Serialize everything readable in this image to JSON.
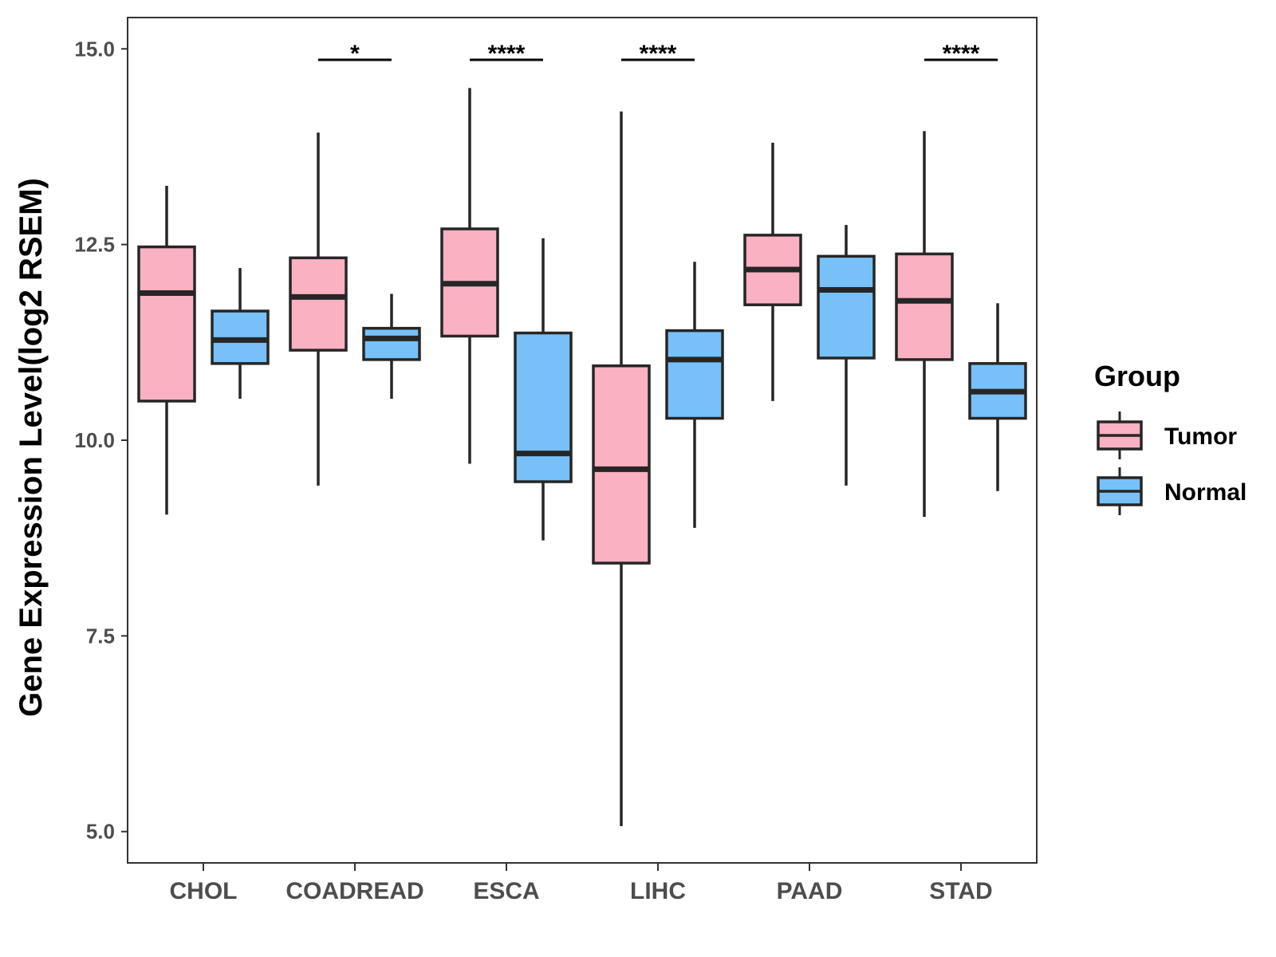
{
  "chart_data": {
    "type": "boxplot",
    "ylabel": "Gene Expression Level(log2 RSEM)",
    "xlabel": "",
    "ylim": [
      4.6,
      15.4
    ],
    "yticks": [
      "5.0",
      "7.5",
      "10.0",
      "12.5",
      "15.0"
    ],
    "categories": [
      "CHOL",
      "COADREAD",
      "ESCA",
      "LIHC",
      "PAAD",
      "STAD"
    ],
    "legend": {
      "title": "Group",
      "position": "right",
      "items": [
        {
          "name": "Tumor",
          "color": "#FAB1C2"
        },
        {
          "name": "Normal",
          "color": "#77C1F8"
        }
      ]
    },
    "series": [
      {
        "name": "Tumor",
        "color": "#FAB1C2",
        "boxes": [
          {
            "min": 9.05,
            "q1": 10.5,
            "median": 11.88,
            "q3": 12.47,
            "max": 13.25
          },
          {
            "min": 9.42,
            "q1": 11.15,
            "median": 11.83,
            "q3": 12.33,
            "max": 13.93
          },
          {
            "min": 9.7,
            "q1": 11.33,
            "median": 12.0,
            "q3": 12.7,
            "max": 14.5
          },
          {
            "min": 5.07,
            "q1": 8.43,
            "median": 9.63,
            "q3": 10.95,
            "max": 14.2
          },
          {
            "min": 10.5,
            "q1": 11.73,
            "median": 12.18,
            "q3": 12.62,
            "max": 13.8
          },
          {
            "min": 9.02,
            "q1": 11.03,
            "median": 11.78,
            "q3": 12.38,
            "max": 13.95
          }
        ]
      },
      {
        "name": "Normal",
        "color": "#77C1F8",
        "boxes": [
          {
            "min": 10.53,
            "q1": 10.98,
            "median": 11.28,
            "q3": 11.65,
            "max": 12.2
          },
          {
            "min": 10.53,
            "q1": 11.03,
            "median": 11.3,
            "q3": 11.43,
            "max": 11.87
          },
          {
            "min": 8.72,
            "q1": 9.47,
            "median": 9.83,
            "q3": 11.37,
            "max": 12.58
          },
          {
            "min": 8.88,
            "q1": 10.28,
            "median": 11.03,
            "q3": 11.4,
            "max": 12.28
          },
          {
            "min": 9.42,
            "q1": 11.05,
            "median": 11.92,
            "q3": 12.35,
            "max": 12.75
          },
          {
            "min": 9.35,
            "q1": 10.28,
            "median": 10.62,
            "q3": 10.98,
            "max": 11.75
          }
        ]
      }
    ],
    "significance": [
      {
        "category": "COADREAD",
        "label": "*"
      },
      {
        "category": "ESCA",
        "label": "****"
      },
      {
        "category": "LIHC",
        "label": "****"
      },
      {
        "category": "STAD",
        "label": "****"
      }
    ]
  }
}
